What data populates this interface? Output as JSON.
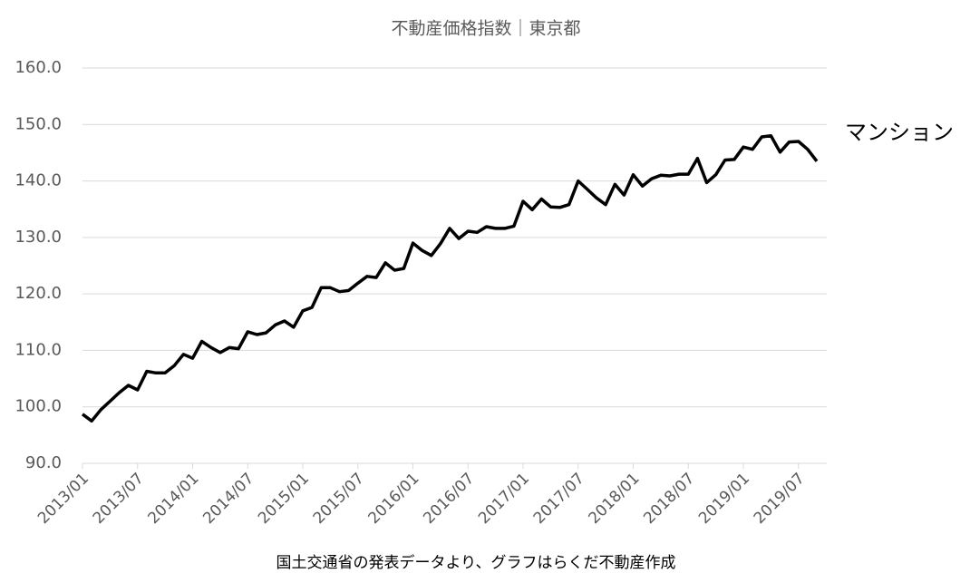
{
  "chart_data": {
    "type": "line",
    "title": "不動産価格指数｜東京都",
    "source": "国土交通省の発表データより、グラフはらくだ不動産作成",
    "categories": [
      "2013/01",
      null,
      null,
      null,
      null,
      null,
      "2013/07",
      null,
      null,
      null,
      null,
      null,
      "2014/01",
      null,
      null,
      null,
      null,
      null,
      "2014/07",
      null,
      null,
      null,
      null,
      null,
      "2015/01",
      null,
      null,
      null,
      null,
      null,
      "2015/07",
      null,
      null,
      null,
      null,
      null,
      "2016/01",
      null,
      null,
      null,
      null,
      null,
      "2016/07",
      null,
      null,
      null,
      null,
      null,
      "2017/01",
      null,
      null,
      null,
      null,
      null,
      "2017/07",
      null,
      null,
      null,
      null,
      null,
      "2018/01",
      null,
      null,
      null,
      null,
      null,
      "2018/07",
      null,
      null,
      null,
      null,
      null,
      "2019/01",
      null,
      null,
      null,
      null,
      null,
      "2019/07",
      null,
      null
    ],
    "series": [
      {
        "name": "マンション",
        "color": "#000000",
        "values": [
          98.7,
          97.5,
          99.5,
          101,
          102.5,
          103.8,
          103,
          106.3,
          106,
          106,
          107.3,
          109.3,
          108.6,
          111.6,
          110.5,
          109.6,
          110.5,
          110.3,
          113.3,
          112.8,
          113.1,
          114.5,
          115.2,
          114.1,
          117,
          117.6,
          121.1,
          121.1,
          120.4,
          120.6,
          121.9,
          123.1,
          122.9,
          125.5,
          124.2,
          124.5,
          129,
          127.7,
          126.8,
          128.9,
          131.6,
          129.8,
          131.1,
          130.9,
          131.9,
          131.6,
          131.6,
          132,
          136.4,
          134.9,
          136.8,
          135.4,
          135.3,
          135.8,
          140,
          138.5,
          137,
          135.8,
          139.4,
          137.5,
          141.1,
          139.1,
          140.4,
          141,
          140.9,
          141.2,
          141.2,
          144,
          139.7,
          141.1,
          143.7,
          143.8,
          146,
          145.6,
          147.8,
          148,
          145.1,
          146.9,
          147,
          145.6,
          143.5
        ]
      }
    ],
    "ylim": [
      90,
      160
    ],
    "yticks": [
      {
        "value": 90,
        "label": "90.0"
      },
      {
        "value": 100,
        "label": "100.0"
      },
      {
        "value": 110,
        "label": "110.0"
      },
      {
        "value": 120,
        "label": "120.0"
      },
      {
        "value": 130,
        "label": "130.0"
      },
      {
        "value": 140,
        "label": "140.0"
      },
      {
        "value": 150,
        "label": "150.0"
      },
      {
        "value": 160,
        "label": "160.0"
      }
    ],
    "grid": true
  }
}
